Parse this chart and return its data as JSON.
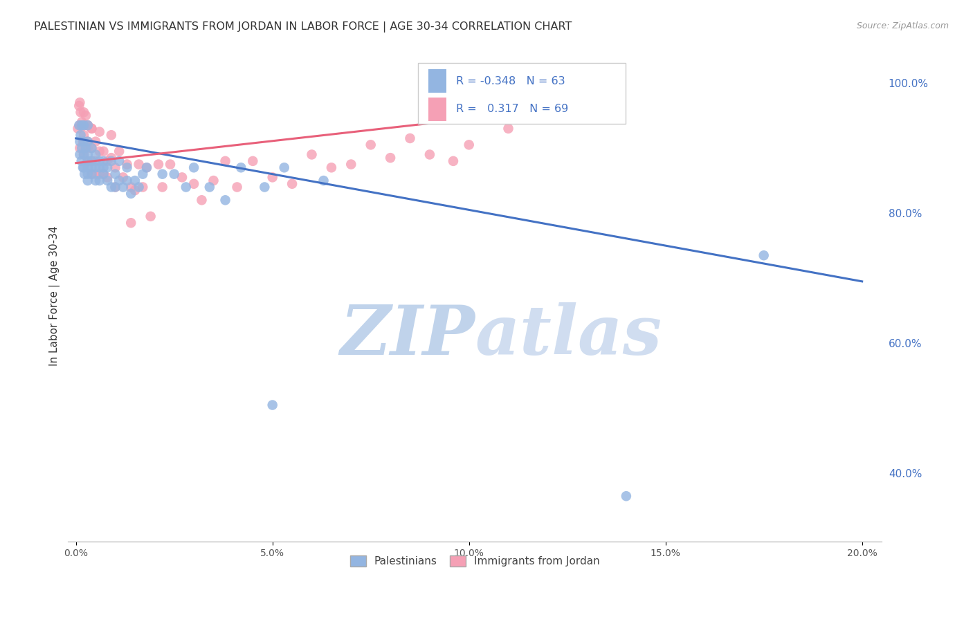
{
  "title": "PALESTINIAN VS IMMIGRANTS FROM JORDAN IN LABOR FORCE | AGE 30-34 CORRELATION CHART",
  "source": "Source: ZipAtlas.com",
  "xlabel_ticks": [
    "0.0%",
    "5.0%",
    "10.0%",
    "15.0%",
    "20.0%"
  ],
  "xlabel_vals": [
    0.0,
    0.05,
    0.1,
    0.15,
    0.2
  ],
  "ylabel": "In Labor Force | Age 30-34",
  "ylabel_ticks": [
    "40.0%",
    "60.0%",
    "80.0%",
    "100.0%"
  ],
  "ylabel_vals": [
    0.4,
    0.6,
    0.8,
    1.0
  ],
  "xlim": [
    -0.002,
    0.205
  ],
  "ylim": [
    0.295,
    1.05
  ],
  "legend_blue_label": "Palestinians",
  "legend_pink_label": "Immigrants from Jordan",
  "blue_R": -0.348,
  "blue_N": 63,
  "pink_R": 0.317,
  "pink_N": 69,
  "dot_color_blue": "#93b5e1",
  "dot_color_pink": "#f5a0b5",
  "line_color_blue": "#4472c4",
  "line_color_pink": "#e8607a",
  "watermark_zip_color": "#b8cce8",
  "watermark_atlas_color": "#c8d8ee",
  "blue_line_x0": 0.0,
  "blue_line_y0": 0.915,
  "blue_line_x1": 0.2,
  "blue_line_y1": 0.695,
  "pink_line_x0": 0.0,
  "pink_line_y0": 0.877,
  "pink_line_x1": 0.115,
  "pink_line_y1": 0.955,
  "blue_x": [
    0.0008,
    0.001,
    0.001,
    0.0012,
    0.0014,
    0.0015,
    0.0015,
    0.0018,
    0.002,
    0.002,
    0.002,
    0.002,
    0.0022,
    0.0025,
    0.003,
    0.003,
    0.003,
    0.003,
    0.003,
    0.003,
    0.003,
    0.004,
    0.004,
    0.004,
    0.004,
    0.005,
    0.005,
    0.005,
    0.006,
    0.006,
    0.006,
    0.007,
    0.007,
    0.007,
    0.008,
    0.008,
    0.009,
    0.009,
    0.01,
    0.01,
    0.011,
    0.011,
    0.012,
    0.013,
    0.013,
    0.014,
    0.015,
    0.016,
    0.017,
    0.018,
    0.022,
    0.025,
    0.028,
    0.03,
    0.034,
    0.038,
    0.042,
    0.048,
    0.053,
    0.063,
    0.05,
    0.14,
    0.175
  ],
  "blue_y": [
    0.935,
    0.91,
    0.89,
    0.92,
    0.88,
    0.935,
    0.9,
    0.87,
    0.935,
    0.91,
    0.89,
    0.87,
    0.86,
    0.9,
    0.935,
    0.91,
    0.89,
    0.87,
    0.86,
    0.88,
    0.85,
    0.9,
    0.87,
    0.86,
    0.88,
    0.89,
    0.87,
    0.85,
    0.88,
    0.87,
    0.85,
    0.87,
    0.86,
    0.88,
    0.87,
    0.85,
    0.88,
    0.84,
    0.86,
    0.84,
    0.88,
    0.85,
    0.84,
    0.87,
    0.85,
    0.83,
    0.85,
    0.84,
    0.86,
    0.87,
    0.86,
    0.86,
    0.84,
    0.87,
    0.84,
    0.82,
    0.87,
    0.84,
    0.87,
    0.85,
    0.505,
    0.365,
    0.735
  ],
  "pink_x": [
    0.0005,
    0.0008,
    0.001,
    0.001,
    0.001,
    0.0012,
    0.0015,
    0.0018,
    0.002,
    0.002,
    0.002,
    0.002,
    0.0025,
    0.003,
    0.003,
    0.003,
    0.003,
    0.003,
    0.004,
    0.004,
    0.004,
    0.004,
    0.004,
    0.005,
    0.005,
    0.005,
    0.006,
    0.006,
    0.006,
    0.007,
    0.007,
    0.008,
    0.008,
    0.009,
    0.009,
    0.01,
    0.01,
    0.011,
    0.012,
    0.013,
    0.014,
    0.014,
    0.015,
    0.016,
    0.017,
    0.018,
    0.019,
    0.021,
    0.022,
    0.024,
    0.027,
    0.03,
    0.032,
    0.035,
    0.038,
    0.041,
    0.045,
    0.05,
    0.055,
    0.06,
    0.065,
    0.07,
    0.075,
    0.08,
    0.085,
    0.09,
    0.096,
    0.1,
    0.11
  ],
  "pink_y": [
    0.93,
    0.965,
    0.97,
    0.935,
    0.9,
    0.955,
    0.94,
    0.91,
    0.955,
    0.935,
    0.92,
    0.89,
    0.95,
    0.935,
    0.91,
    0.88,
    0.935,
    0.9,
    0.93,
    0.9,
    0.88,
    0.86,
    0.93,
    0.91,
    0.88,
    0.86,
    0.925,
    0.895,
    0.86,
    0.895,
    0.86,
    0.88,
    0.855,
    0.92,
    0.885,
    0.87,
    0.84,
    0.895,
    0.855,
    0.875,
    0.84,
    0.785,
    0.835,
    0.875,
    0.84,
    0.87,
    0.795,
    0.875,
    0.84,
    0.875,
    0.855,
    0.845,
    0.82,
    0.85,
    0.88,
    0.84,
    0.88,
    0.855,
    0.845,
    0.89,
    0.87,
    0.875,
    0.905,
    0.885,
    0.915,
    0.89,
    0.88,
    0.905,
    0.93
  ]
}
